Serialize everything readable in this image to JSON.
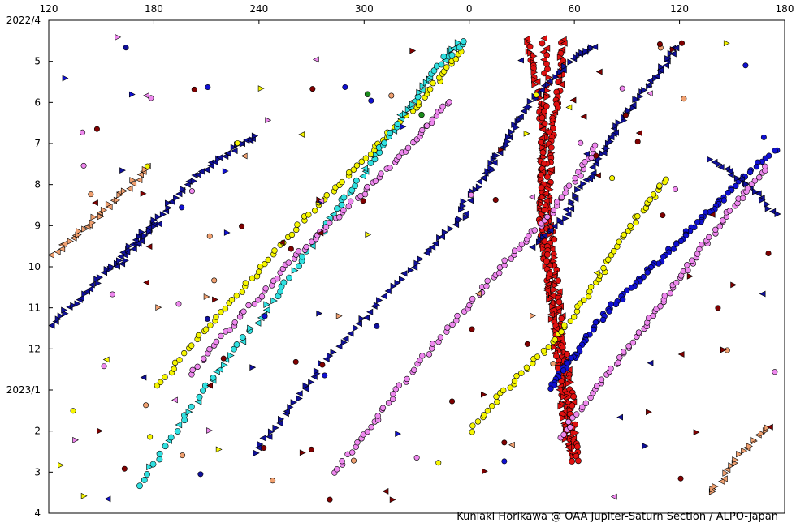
{
  "chart_data": {
    "type": "scatter",
    "title": "",
    "xlabel": "",
    "ylabel": "",
    "x_axis": {
      "tick_labels": [
        "120",
        "180",
        "240",
        "300",
        "0",
        "60",
        "120",
        "180"
      ],
      "note": "System longitude in degrees, decreasing toward the right then wrapping past 0"
    },
    "y_axis": {
      "tick_labels": [
        "2022/4",
        "5",
        "6",
        "7",
        "8",
        "9",
        "10",
        "11",
        "12",
        "2023/1",
        "2",
        "3",
        "4"
      ]
    },
    "grid": false,
    "credit": "Kuniaki Horikawa @ OAA Jupiter-Saturn Section / ALPO-Japan",
    "colors": {
      "red": "#e01010",
      "blue": "#1010d0",
      "navy": "#10109a",
      "yellow": "#f5f500",
      "cyan": "#30e0e0",
      "violet": "#ee88ee",
      "orange": "#f0a070",
      "maroon": "#800000",
      "green": "#1a8a1a"
    },
    "series": [
      {
        "color": "red",
        "marker": "circle+triangle",
        "points": [
          [
            15,
            4.45
          ],
          [
            18,
            5.2
          ],
          [
            20,
            6.0
          ],
          [
            22,
            6.8
          ],
          [
            21,
            7.6
          ],
          [
            20,
            8.4
          ],
          [
            21,
            9.2
          ],
          [
            23,
            10.0
          ],
          [
            25,
            10.8
          ],
          [
            27,
            11.6
          ],
          [
            29,
            12.4
          ],
          [
            31,
            13.2
          ],
          [
            32,
            14.0
          ],
          [
            34,
            14.8
          ]
        ]
      },
      {
        "color": "red",
        "marker": "circle+triangle",
        "points": [
          [
            30,
            4.45
          ],
          [
            29,
            5.2
          ],
          [
            27,
            6.0
          ],
          [
            25,
            6.8
          ],
          [
            24,
            7.6
          ],
          [
            24,
            8.4
          ],
          [
            25,
            9.2
          ],
          [
            26,
            10.0
          ],
          [
            28,
            10.8
          ],
          [
            29,
            11.6
          ],
          [
            31,
            12.4
          ],
          [
            33,
            13.2
          ],
          [
            34,
            14.0
          ],
          [
            36,
            14.8
          ]
        ]
      },
      {
        "color": "red",
        "marker": "circle+triangle",
        "points": [
          [
            22,
            4.45
          ],
          [
            23,
            5.5
          ],
          [
            22,
            6.5
          ],
          [
            21,
            7.5
          ],
          [
            22,
            8.5
          ],
          [
            23,
            9.5
          ],
          [
            24,
            10.5
          ],
          [
            26,
            11.5
          ],
          [
            28,
            12.5
          ],
          [
            30,
            13.5
          ],
          [
            31,
            14.5
          ]
        ]
      },
      {
        "color": "blue",
        "marker": "circle",
        "points": [
          [
            179,
            4.5
          ],
          [
            168,
            5.1
          ],
          [
            160,
            5.6
          ],
          [
            150,
            6.1
          ],
          [
            140,
            6.6
          ],
          [
            130,
            7.1
          ],
          [
            122,
            7.35
          ]
        ]
      },
      {
        "color": "blue",
        "marker": "circle",
        "points": [
          [
            178,
            4.45
          ],
          [
            165,
            5.05
          ],
          [
            150,
            5.75
          ],
          [
            135,
            6.35
          ],
          [
            120,
            7.0
          ],
          [
            105,
            7.7
          ],
          [
            95,
            8.35
          ],
          [
            87,
            8.8
          ],
          [
            78,
            9.3
          ],
          [
            68,
            9.9
          ],
          [
            60,
            10.35
          ],
          [
            50,
            10.95
          ],
          [
            42,
            11.5
          ],
          [
            35,
            12.1
          ],
          [
            30,
            12.5
          ],
          [
            24,
            13.0
          ]
        ]
      },
      {
        "color": "navy",
        "marker": "triangle",
        "points": [
          [
            208,
            10.0
          ],
          [
            220,
            9.1
          ],
          [
            232,
            8.3
          ],
          [
            244,
            7.6
          ],
          [
            256,
            7.1
          ],
          [
            266,
            6.8
          ]
        ]
      },
      {
        "color": "navy",
        "marker": "triangle",
        "points": [
          [
            168,
            12.3
          ],
          [
            180,
            11.5
          ],
          [
            192,
            10.8
          ],
          [
            204,
            10.1
          ],
          [
            216,
            9.4
          ],
          [
            226,
            8.9
          ]
        ]
      },
      {
        "color": "navy",
        "marker": "triangle",
        "points": [
          [
            264,
            14.5
          ],
          [
            278,
            13.5
          ],
          [
            290,
            12.5
          ],
          [
            306,
            11.4
          ],
          [
            322,
            10.4
          ],
          [
            338,
            9.4
          ],
          [
            352,
            8.6
          ]
        ]
      },
      {
        "color": "navy",
        "marker": "triangle",
        "points": [
          [
            348,
            8.6
          ],
          [
            358,
            7.8
          ],
          [
            4,
            7.2
          ],
          [
            12,
            6.4
          ],
          [
            22,
            5.6
          ],
          [
            35,
            4.9
          ],
          [
            43,
            4.6
          ]
        ]
      },
      {
        "color": "navy",
        "marker": "triangle",
        "points": [
          [
            18,
            9.5
          ],
          [
            30,
            8.8
          ],
          [
            38,
            8.0
          ],
          [
            46,
            7.2
          ],
          [
            52,
            6.6
          ],
          [
            60,
            5.9
          ],
          [
            70,
            5.2
          ],
          [
            76,
            4.6
          ]
        ]
      },
      {
        "color": "navy",
        "marker": "triangle",
        "points": [
          [
            90,
            7.4
          ],
          [
            105,
            8.0
          ],
          [
            118,
            8.8
          ],
          [
            130,
            9.6
          ],
          [
            142,
            10.4
          ],
          [
            154,
            11.3
          ],
          [
            166,
            12.2
          ],
          [
            174,
            13.0
          ]
        ]
      },
      {
        "color": "yellow",
        "marker": "circle",
        "points": [
          [
            225,
            12.9
          ],
          [
            240,
            11.8
          ],
          [
            255,
            10.8
          ],
          [
            270,
            9.8
          ],
          [
            285,
            8.8
          ],
          [
            300,
            7.9
          ],
          [
            315,
            7.0
          ],
          [
            328,
            6.2
          ],
          [
            340,
            5.4
          ],
          [
            349,
            4.6
          ]
        ]
      },
      {
        "color": "yellow",
        "marker": "circle",
        "points": [
          [
            -8,
            14.0
          ],
          [
            6,
            13.0
          ],
          [
            20,
            12.2
          ],
          [
            32,
            11.3
          ],
          [
            44,
            10.3
          ],
          [
            54,
            9.3
          ],
          [
            64,
            8.5
          ],
          [
            72,
            7.8
          ]
        ]
      },
      {
        "color": "cyan",
        "marker": "circle+triangle",
        "points": [
          [
            217,
            15.3
          ],
          [
            232,
            14.0
          ],
          [
            246,
            12.8
          ],
          [
            260,
            11.7
          ],
          [
            274,
            10.6
          ],
          [
            288,
            9.4
          ],
          [
            300,
            8.4
          ],
          [
            312,
            7.4
          ],
          [
            322,
            6.5
          ],
          [
            332,
            5.7
          ],
          [
            342,
            4.9
          ],
          [
            350,
            4.45
          ]
        ]
      },
      {
        "color": "violet",
        "marker": "circle",
        "points": [
          [
            238,
            12.6
          ],
          [
            252,
            11.6
          ],
          [
            266,
            10.7
          ],
          [
            280,
            9.8
          ],
          [
            294,
            9.0
          ],
          [
            308,
            8.2
          ],
          [
            322,
            7.4
          ],
          [
            334,
            6.6
          ],
          [
            344,
            5.9
          ]
        ]
      },
      {
        "color": "violet",
        "marker": "circle",
        "points": [
          [
            296,
            15.0
          ],
          [
            310,
            14.0
          ],
          [
            322,
            13.0
          ],
          [
            336,
            12.0
          ],
          [
            350,
            11.0
          ],
          [
            2,
            10.2
          ],
          [
            14,
            9.4
          ],
          [
            26,
            8.6
          ],
          [
            36,
            7.8
          ],
          [
            44,
            7.0
          ]
        ]
      },
      {
        "color": "violet",
        "marker": "circle",
        "points": [
          [
            28,
            14.2
          ],
          [
            40,
            13.2
          ],
          [
            52,
            12.3
          ],
          [
            62,
            11.5
          ],
          [
            72,
            10.7
          ],
          [
            82,
            9.9
          ],
          [
            92,
            9.1
          ],
          [
            102,
            8.3
          ],
          [
            114,
            7.5
          ]
        ]
      },
      {
        "color": "orange",
        "marker": "triangle",
        "points": [
          [
            120,
            14.0
          ],
          [
            135,
            13.0
          ],
          [
            148,
            12.0
          ],
          [
            160,
            11.0
          ],
          [
            172,
            10.2
          ],
          [
            186,
            9.5
          ],
          [
            198,
            8.9
          ],
          [
            210,
            8.2
          ],
          [
            222,
            7.5
          ]
        ]
      },
      {
        "color": "orange",
        "marker": "triangle",
        "points": [
          [
            90,
            15.5
          ],
          [
            102,
            14.6
          ],
          [
            114,
            13.8
          ],
          [
            126,
            13.0
          ],
          [
            138,
            12.2
          ],
          [
            150,
            11.5
          ],
          [
            162,
            11.0
          ],
          [
            172,
            10.4
          ],
          [
            180,
            9.9
          ]
        ]
      }
    ]
  }
}
